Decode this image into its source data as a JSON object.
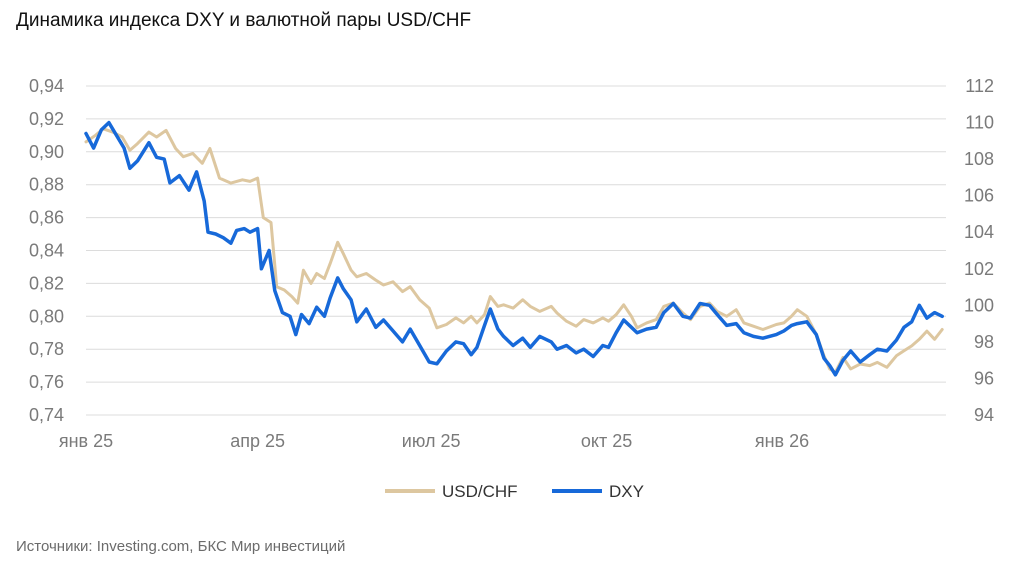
{
  "title": "Динамика индекса DXY и валютной пары USD/CHF",
  "source": "Источники: Investing.com, БКС Мир инвестиций",
  "colors": {
    "usdchf": "#DDC7A0",
    "dxy": "#1769D9",
    "grid": "#DCDCDC",
    "tick": "#7a7a7a"
  },
  "chart_data": {
    "type": "line",
    "legend_position": "bottom",
    "grid": true,
    "x_ticks": [
      "янв 25",
      "апр 25",
      "июл 25",
      "окт 25",
      "янв 26"
    ],
    "x_tick_dates": [
      "2025-01-01",
      "2025-04-01",
      "2025-07-01",
      "2025-10-01",
      "2026-01-01"
    ],
    "y_left": {
      "ylim": [
        0.74,
        0.94
      ],
      "ticks": [
        "0,74",
        "0,76",
        "0,78",
        "0,80",
        "0,82",
        "0,84",
        "0,86",
        "0,88",
        "0,90",
        "0,92",
        "0,94"
      ]
    },
    "y_right": {
      "ylim": [
        94,
        112
      ],
      "ticks": [
        "94",
        "96",
        "98",
        "100",
        "102",
        "104",
        "106",
        "108",
        "110",
        "112"
      ]
    },
    "series": [
      {
        "name": "USD/CHF",
        "axis": "left",
        "points": [
          [
            "2025-01-01",
            0.906
          ],
          [
            "2025-01-06",
            0.91
          ],
          [
            "2025-01-10",
            0.914
          ],
          [
            "2025-01-15",
            0.912
          ],
          [
            "2025-01-20",
            0.909
          ],
          [
            "2025-01-24",
            0.901
          ],
          [
            "2025-01-28",
            0.905
          ],
          [
            "2025-02-03",
            0.912
          ],
          [
            "2025-02-07",
            0.909
          ],
          [
            "2025-02-12",
            0.913
          ],
          [
            "2025-02-17",
            0.902
          ],
          [
            "2025-02-21",
            0.897
          ],
          [
            "2025-02-26",
            0.899
          ],
          [
            "2025-03-03",
            0.893
          ],
          [
            "2025-03-07",
            0.902
          ],
          [
            "2025-03-12",
            0.884
          ],
          [
            "2025-03-18",
            0.881
          ],
          [
            "2025-03-24",
            0.883
          ],
          [
            "2025-03-28",
            0.882
          ],
          [
            "2025-04-01",
            0.884
          ],
          [
            "2025-04-04",
            0.86
          ],
          [
            "2025-04-08",
            0.857
          ],
          [
            "2025-04-11",
            0.818
          ],
          [
            "2025-04-15",
            0.816
          ],
          [
            "2025-04-19",
            0.812
          ],
          [
            "2025-04-22",
            0.808
          ],
          [
            "2025-04-25",
            0.828
          ],
          [
            "2025-04-29",
            0.82
          ],
          [
            "2025-05-02",
            0.826
          ],
          [
            "2025-05-06",
            0.823
          ],
          [
            "2025-05-09",
            0.832
          ],
          [
            "2025-05-13",
            0.845
          ],
          [
            "2025-05-16",
            0.838
          ],
          [
            "2025-05-20",
            0.828
          ],
          [
            "2025-05-23",
            0.824
          ],
          [
            "2025-05-28",
            0.826
          ],
          [
            "2025-06-02",
            0.822
          ],
          [
            "2025-06-06",
            0.819
          ],
          [
            "2025-06-11",
            0.821
          ],
          [
            "2025-06-16",
            0.815
          ],
          [
            "2025-06-20",
            0.818
          ],
          [
            "2025-06-25",
            0.81
          ],
          [
            "2025-06-30",
            0.805
          ],
          [
            "2025-07-04",
            0.793
          ],
          [
            "2025-07-09",
            0.795
          ],
          [
            "2025-07-14",
            0.799
          ],
          [
            "2025-07-18",
            0.796
          ],
          [
            "2025-07-22",
            0.8
          ],
          [
            "2025-07-25",
            0.796
          ],
          [
            "2025-07-29",
            0.801
          ],
          [
            "2025-08-01",
            0.812
          ],
          [
            "2025-08-05",
            0.806
          ],
          [
            "2025-08-08",
            0.807
          ],
          [
            "2025-08-13",
            0.805
          ],
          [
            "2025-08-18",
            0.81
          ],
          [
            "2025-08-22",
            0.806
          ],
          [
            "2025-08-27",
            0.803
          ],
          [
            "2025-09-02",
            0.806
          ],
          [
            "2025-09-05",
            0.802
          ],
          [
            "2025-09-10",
            0.797
          ],
          [
            "2025-09-15",
            0.794
          ],
          [
            "2025-09-19",
            0.798
          ],
          [
            "2025-09-24",
            0.796
          ],
          [
            "2025-09-29",
            0.799
          ],
          [
            "2025-10-02",
            0.797
          ],
          [
            "2025-10-06",
            0.801
          ],
          [
            "2025-10-10",
            0.807
          ],
          [
            "2025-10-14",
            0.8
          ],
          [
            "2025-10-17",
            0.793
          ],
          [
            "2025-10-22",
            0.796
          ],
          [
            "2025-10-27",
            0.798
          ],
          [
            "2025-10-31",
            0.806
          ],
          [
            "2025-11-05",
            0.808
          ],
          [
            "2025-11-10",
            0.802
          ],
          [
            "2025-11-14",
            0.798
          ],
          [
            "2025-11-19",
            0.806
          ],
          [
            "2025-11-24",
            0.808
          ],
          [
            "2025-11-28",
            0.803
          ],
          [
            "2025-12-03",
            0.8
          ],
          [
            "2025-12-08",
            0.804
          ],
          [
            "2025-12-12",
            0.796
          ],
          [
            "2025-12-17",
            0.794
          ],
          [
            "2025-12-22",
            0.792
          ],
          [
            "2025-12-29",
            0.795
          ],
          [
            "2026-01-02",
            0.796
          ],
          [
            "2026-01-06",
            0.8
          ],
          [
            "2026-01-09",
            0.804
          ],
          [
            "2026-01-14",
            0.8
          ],
          [
            "2026-01-19",
            0.789
          ],
          [
            "2026-01-23",
            0.776
          ],
          [
            "2026-01-26",
            0.768
          ],
          [
            "2026-01-29",
            0.766
          ],
          [
            "2026-02-02",
            0.775
          ],
          [
            "2026-02-06",
            0.768
          ],
          [
            "2026-02-11",
            0.771
          ],
          [
            "2026-02-16",
            0.77
          ],
          [
            "2026-02-20",
            0.772
          ],
          [
            "2026-02-25",
            0.769
          ],
          [
            "2026-03-02",
            0.776
          ],
          [
            "2026-03-06",
            0.779
          ],
          [
            "2026-03-10",
            0.782
          ],
          [
            "2026-03-14",
            0.786
          ],
          [
            "2026-03-18",
            0.791
          ],
          [
            "2026-03-22",
            0.786
          ],
          [
            "2026-03-26",
            0.792
          ]
        ]
      },
      {
        "name": "DXY",
        "axis": "right",
        "points": [
          [
            "2025-01-01",
            109.4
          ],
          [
            "2025-01-05",
            108.6
          ],
          [
            "2025-01-09",
            109.6
          ],
          [
            "2025-01-13",
            110.0
          ],
          [
            "2025-01-17",
            109.3
          ],
          [
            "2025-01-21",
            108.6
          ],
          [
            "2025-01-24",
            107.5
          ],
          [
            "2025-01-28",
            107.9
          ],
          [
            "2025-02-03",
            108.9
          ],
          [
            "2025-02-07",
            108.1
          ],
          [
            "2025-02-11",
            108.0
          ],
          [
            "2025-02-14",
            106.7
          ],
          [
            "2025-02-19",
            107.1
          ],
          [
            "2025-02-24",
            106.3
          ],
          [
            "2025-02-28",
            107.3
          ],
          [
            "2025-03-04",
            105.7
          ],
          [
            "2025-03-06",
            104.0
          ],
          [
            "2025-03-10",
            103.9
          ],
          [
            "2025-03-14",
            103.7
          ],
          [
            "2025-03-18",
            103.4
          ],
          [
            "2025-03-21",
            104.1
          ],
          [
            "2025-03-25",
            104.2
          ],
          [
            "2025-03-28",
            104.0
          ],
          [
            "2025-04-01",
            104.2
          ],
          [
            "2025-04-03",
            102.0
          ],
          [
            "2025-04-07",
            103.0
          ],
          [
            "2025-04-10",
            100.8
          ],
          [
            "2025-04-14",
            99.6
          ],
          [
            "2025-04-18",
            99.4
          ],
          [
            "2025-04-21",
            98.4
          ],
          [
            "2025-04-24",
            99.5
          ],
          [
            "2025-04-28",
            99.0
          ],
          [
            "2025-05-02",
            99.9
          ],
          [
            "2025-05-06",
            99.4
          ],
          [
            "2025-05-09",
            100.4
          ],
          [
            "2025-05-13",
            101.5
          ],
          [
            "2025-05-16",
            100.9
          ],
          [
            "2025-05-20",
            100.3
          ],
          [
            "2025-05-23",
            99.1
          ],
          [
            "2025-05-28",
            99.8
          ],
          [
            "2025-06-02",
            98.8
          ],
          [
            "2025-06-06",
            99.2
          ],
          [
            "2025-06-11",
            98.6
          ],
          [
            "2025-06-16",
            98.0
          ],
          [
            "2025-06-20",
            98.7
          ],
          [
            "2025-06-25",
            97.8
          ],
          [
            "2025-06-30",
            96.9
          ],
          [
            "2025-07-04",
            96.8
          ],
          [
            "2025-07-09",
            97.5
          ],
          [
            "2025-07-14",
            98.0
          ],
          [
            "2025-07-18",
            97.9
          ],
          [
            "2025-07-22",
            97.3
          ],
          [
            "2025-07-25",
            97.7
          ],
          [
            "2025-07-29",
            98.9
          ],
          [
            "2025-08-01",
            99.8
          ],
          [
            "2025-08-05",
            98.7
          ],
          [
            "2025-08-08",
            98.3
          ],
          [
            "2025-08-13",
            97.8
          ],
          [
            "2025-08-18",
            98.2
          ],
          [
            "2025-08-22",
            97.7
          ],
          [
            "2025-08-27",
            98.3
          ],
          [
            "2025-09-02",
            98.0
          ],
          [
            "2025-09-05",
            97.6
          ],
          [
            "2025-09-10",
            97.8
          ],
          [
            "2025-09-15",
            97.4
          ],
          [
            "2025-09-19",
            97.6
          ],
          [
            "2025-09-24",
            97.2
          ],
          [
            "2025-09-29",
            97.8
          ],
          [
            "2025-10-02",
            97.7
          ],
          [
            "2025-10-06",
            98.5
          ],
          [
            "2025-10-10",
            99.2
          ],
          [
            "2025-10-14",
            98.8
          ],
          [
            "2025-10-17",
            98.5
          ],
          [
            "2025-10-22",
            98.7
          ],
          [
            "2025-10-27",
            98.8
          ],
          [
            "2025-10-31",
            99.6
          ],
          [
            "2025-11-05",
            100.1
          ],
          [
            "2025-11-10",
            99.4
          ],
          [
            "2025-11-14",
            99.3
          ],
          [
            "2025-11-19",
            100.1
          ],
          [
            "2025-11-24",
            100.0
          ],
          [
            "2025-11-28",
            99.5
          ],
          [
            "2025-12-03",
            98.9
          ],
          [
            "2025-12-08",
            99.0
          ],
          [
            "2025-12-12",
            98.5
          ],
          [
            "2025-12-17",
            98.3
          ],
          [
            "2025-12-22",
            98.2
          ],
          [
            "2025-12-29",
            98.4
          ],
          [
            "2026-01-02",
            98.6
          ],
          [
            "2026-01-06",
            98.9
          ],
          [
            "2026-01-09",
            99.0
          ],
          [
            "2026-01-14",
            99.1
          ],
          [
            "2026-01-19",
            98.4
          ],
          [
            "2026-01-23",
            97.1
          ],
          [
            "2026-01-26",
            96.7
          ],
          [
            "2026-01-29",
            96.2
          ],
          [
            "2026-02-02",
            97.0
          ],
          [
            "2026-02-06",
            97.5
          ],
          [
            "2026-02-11",
            96.9
          ],
          [
            "2026-02-16",
            97.3
          ],
          [
            "2026-02-20",
            97.6
          ],
          [
            "2026-02-25",
            97.5
          ],
          [
            "2026-03-02",
            98.1
          ],
          [
            "2026-03-06",
            98.8
          ],
          [
            "2026-03-10",
            99.1
          ],
          [
            "2026-03-14",
            100.0
          ],
          [
            "2026-03-18",
            99.3
          ],
          [
            "2026-03-22",
            99.6
          ],
          [
            "2026-03-26",
            99.4
          ]
        ]
      }
    ]
  }
}
